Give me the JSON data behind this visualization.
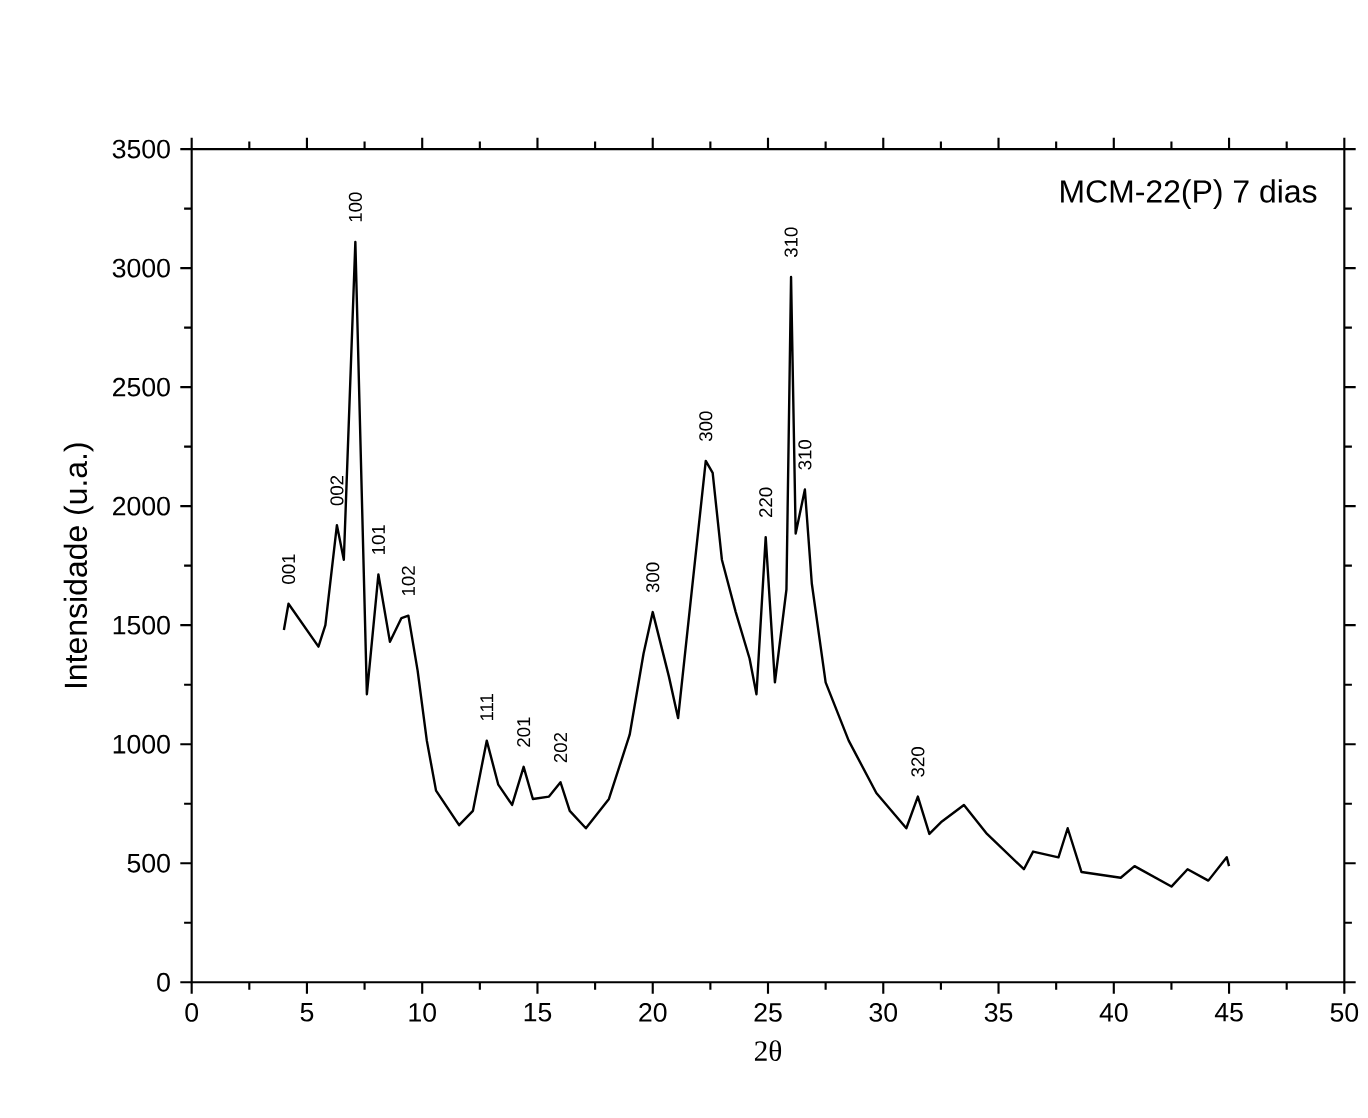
{
  "chart_data": {
    "type": "line",
    "title": "MCM-22(P) 7 dias",
    "xlabel": "2θ",
    "ylabel": "Intensidade (u.a.)",
    "xlim": [
      0,
      50
    ],
    "ylim": [
      0,
      3500
    ],
    "xticks": [
      0,
      5,
      10,
      15,
      20,
      25,
      30,
      35,
      40,
      45,
      50
    ],
    "yticks": [
      0,
      500,
      1000,
      1500,
      2000,
      2500,
      3000,
      3500
    ],
    "line_style": "solid",
    "series": [
      {
        "color": "#000000",
        "x": [
          4.0,
          4.2,
          5.5,
          5.8,
          6.3,
          6.6,
          7.1,
          7.6,
          8.1,
          8.6,
          9.1,
          9.4,
          9.8,
          10.2,
          10.6,
          11.6,
          12.2,
          12.8,
          13.3,
          13.9,
          14.4,
          14.8,
          15.5,
          16.0,
          16.4,
          17.1,
          18.1,
          19.0,
          19.6,
          20.0,
          20.7,
          21.1,
          21.7,
          22.3,
          22.6,
          23.0,
          23.6,
          24.2,
          24.5,
          24.9,
          25.3,
          25.8,
          26.0,
          26.2,
          26.6,
          26.9,
          27.5,
          28.5,
          29.7,
          31.0,
          31.5,
          32.0,
          32.5,
          33.5,
          34.5,
          36.1,
          36.5,
          37.6,
          38.0,
          38.6,
          40.3,
          40.9,
          42.5,
          43.2,
          44.1,
          44.9,
          45.0
        ],
        "values": [
          1480,
          1590,
          1410,
          1500,
          1920,
          1775,
          3110,
          1210,
          1713,
          1430,
          1530,
          1540,
          1310,
          1015,
          805,
          660,
          720,
          1015,
          830,
          745,
          905,
          770,
          780,
          840,
          720,
          647,
          770,
          1040,
          1380,
          1555,
          1285,
          1110,
          1650,
          2190,
          2140,
          1775,
          1555,
          1360,
          1210,
          1870,
          1260,
          1650,
          2963,
          1885,
          2070,
          1675,
          1260,
          1015,
          795,
          647,
          780,
          623,
          672,
          745,
          623,
          475,
          549,
          525,
          647,
          463,
          439,
          488,
          402,
          475,
          427,
          525,
          488
        ]
      }
    ],
    "annotations": [
      {
        "text": "001",
        "x": 4.2,
        "y": 1590
      },
      {
        "text": "002",
        "x": 6.3,
        "y": 1920
      },
      {
        "text": "100",
        "x": 7.1,
        "y": 3110
      },
      {
        "text": "101",
        "x": 8.1,
        "y": 1713
      },
      {
        "text": "102",
        "x": 9.4,
        "y": 1540
      },
      {
        "text": "111",
        "x": 12.8,
        "y": 1015
      },
      {
        "text": "201",
        "x": 14.4,
        "y": 905
      },
      {
        "text": "202",
        "x": 16.0,
        "y": 840
      },
      {
        "text": "300",
        "x": 20.0,
        "y": 1555
      },
      {
        "text": "300",
        "x": 22.3,
        "y": 2190
      },
      {
        "text": "220",
        "x": 24.9,
        "y": 1870
      },
      {
        "text": "310",
        "x": 26.0,
        "y": 2963
      },
      {
        "text": "310",
        "x": 26.6,
        "y": 2070
      },
      {
        "text": "320",
        "x": 31.5,
        "y": 780
      }
    ]
  }
}
